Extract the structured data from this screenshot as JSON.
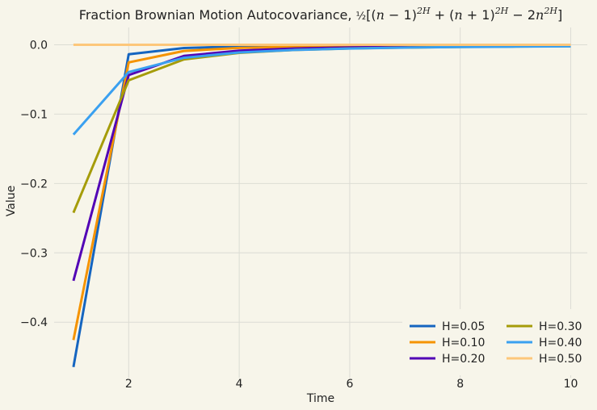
{
  "chart_data": {
    "type": "line",
    "title": "Fraction Brownian Motion Autocovariance, ½[(n − 1)^2H + (n + 1)^2H − 2n^2H]",
    "xlabel": "Time",
    "ylabel": "Value",
    "x": [
      1,
      2,
      3,
      4,
      5,
      6,
      7,
      8,
      9,
      10
    ],
    "xlim": [
      0.65,
      10.3
    ],
    "ylim": [
      -0.48,
      0.025
    ],
    "xticks": [
      2,
      4,
      6,
      8,
      10
    ],
    "xtick_labels": [
      "2",
      "4",
      "6",
      "8",
      "10"
    ],
    "yticks": [
      0.0,
      -0.1,
      -0.2,
      -0.3,
      -0.4
    ],
    "ytick_labels": [
      "0.0",
      "−0.1",
      "−0.2",
      "−0.3",
      "−0.4"
    ],
    "grid": true,
    "legend_position": "lower-right",
    "legend_columns": 2,
    "background": "#f7f5ea",
    "series": [
      {
        "name": "H=0.05",
        "color": "#1565c0",
        "values": [
          -0.4646,
          -0.0137,
          -0.0047,
          -0.0024,
          -0.0015,
          -0.001,
          -0.0007,
          -0.0005,
          -0.0004,
          -0.0003
        ]
      },
      {
        "name": "H=0.10",
        "color": "#f59300",
        "values": [
          -0.4257,
          -0.0254,
          -0.0089,
          -0.0046,
          -0.0028,
          -0.0019,
          -0.0014,
          -0.0011,
          -0.0009,
          -0.0007
        ]
      },
      {
        "name": "H=0.20",
        "color": "#5203b5",
        "values": [
          -0.3403,
          -0.0436,
          -0.0161,
          -0.0085,
          -0.0054,
          -0.0037,
          -0.0028,
          -0.0022,
          -0.0017,
          -0.0014
        ]
      },
      {
        "name": "H=0.30",
        "color": "#a59c09",
        "values": [
          -0.2422,
          -0.0512,
          -0.0211,
          -0.0117,
          -0.0075,
          -0.0053,
          -0.004,
          -0.0031,
          -0.0025,
          -0.0021
        ]
      },
      {
        "name": "H=0.40",
        "color": "#3aa0f0",
        "values": [
          -0.1295,
          -0.0394,
          -0.0187,
          -0.0111,
          -0.0075,
          -0.0054,
          -0.0041,
          -0.0033,
          -0.0027,
          -0.0022
        ]
      },
      {
        "name": "H=0.50",
        "color": "#fdc77a",
        "values": [
          0,
          0,
          0,
          0,
          0,
          0,
          0,
          0,
          0,
          0
        ]
      }
    ]
  }
}
